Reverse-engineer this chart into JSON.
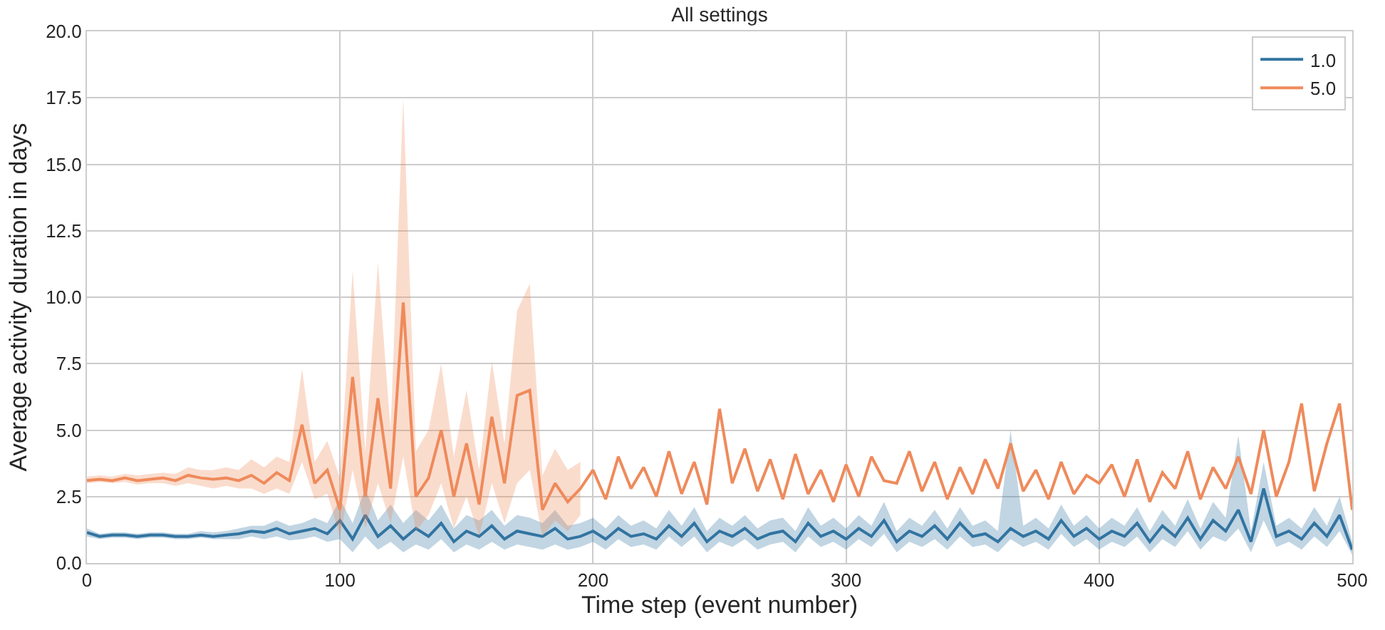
{
  "chart_data": {
    "type": "line",
    "title": "All settings",
    "xlabel": "Time step (event number)",
    "ylabel": "Average activity duration in days",
    "x": [
      0,
      5,
      10,
      15,
      20,
      25,
      30,
      35,
      40,
      45,
      50,
      55,
      60,
      65,
      70,
      75,
      80,
      85,
      90,
      95,
      100,
      105,
      110,
      115,
      120,
      125,
      130,
      135,
      140,
      145,
      150,
      155,
      160,
      165,
      170,
      175,
      180,
      185,
      190,
      195,
      200,
      205,
      210,
      215,
      220,
      225,
      230,
      235,
      240,
      245,
      250,
      255,
      260,
      265,
      270,
      275,
      280,
      285,
      290,
      295,
      300,
      305,
      310,
      315,
      320,
      325,
      330,
      335,
      340,
      345,
      350,
      355,
      360,
      365,
      370,
      375,
      380,
      385,
      390,
      395,
      400,
      405,
      410,
      415,
      420,
      425,
      430,
      435,
      440,
      445,
      450,
      455,
      460,
      465,
      470,
      475,
      480,
      485,
      490,
      495,
      500
    ],
    "series": [
      {
        "name": "1.0",
        "color": "#3274a1",
        "values": [
          1.15,
          1.0,
          1.05,
          1.05,
          1.0,
          1.05,
          1.05,
          1.0,
          1.0,
          1.05,
          1.0,
          1.05,
          1.1,
          1.2,
          1.15,
          1.3,
          1.1,
          1.2,
          1.3,
          1.1,
          1.6,
          0.9,
          1.8,
          1.0,
          1.4,
          0.9,
          1.3,
          1.0,
          1.5,
          0.8,
          1.2,
          1.0,
          1.4,
          0.9,
          1.2,
          1.1,
          1.0,
          1.3,
          0.9,
          1.0,
          1.2,
          0.9,
          1.3,
          1.0,
          1.1,
          0.9,
          1.4,
          1.0,
          1.5,
          0.8,
          1.2,
          1.0,
          1.3,
          0.9,
          1.1,
          1.2,
          0.8,
          1.5,
          1.0,
          1.2,
          0.9,
          1.3,
          1.0,
          1.6,
          0.8,
          1.2,
          1.0,
          1.4,
          0.9,
          1.5,
          1.0,
          1.1,
          0.8,
          1.3,
          1.0,
          1.2,
          0.9,
          1.6,
          1.0,
          1.3,
          0.9,
          1.2,
          1.0,
          1.5,
          0.8,
          1.4,
          1.0,
          1.7,
          0.9,
          1.6,
          1.2,
          2.0,
          0.8,
          2.8,
          1.0,
          1.2,
          0.9,
          1.5,
          1.0,
          1.8,
          0.5
        ],
        "lower": [
          1.0,
          0.9,
          0.95,
          0.95,
          0.9,
          0.95,
          0.95,
          0.9,
          0.9,
          0.95,
          0.9,
          0.9,
          0.9,
          1.0,
          0.9,
          1.0,
          0.85,
          0.9,
          1.0,
          0.8,
          0.9,
          0.4,
          1.0,
          0.5,
          0.8,
          0.4,
          0.7,
          0.5,
          0.9,
          0.4,
          0.7,
          0.5,
          0.8,
          0.5,
          0.7,
          0.6,
          0.5,
          0.7,
          0.5,
          0.6,
          0.8,
          0.5,
          0.9,
          0.6,
          0.7,
          0.5,
          1.0,
          0.6,
          1.0,
          0.4,
          0.8,
          0.6,
          0.9,
          0.5,
          0.7,
          0.8,
          0.4,
          1.0,
          0.6,
          0.8,
          0.5,
          0.9,
          0.6,
          1.1,
          0.4,
          0.8,
          0.6,
          0.9,
          0.5,
          1.0,
          0.6,
          0.7,
          0.4,
          0.9,
          0.6,
          0.8,
          0.5,
          1.1,
          0.6,
          0.9,
          0.5,
          0.8,
          0.6,
          1.0,
          0.4,
          0.9,
          0.6,
          1.2,
          0.5,
          1.0,
          0.8,
          1.3,
          0.4,
          1.6,
          0.6,
          0.8,
          0.5,
          1.0,
          0.6,
          1.2,
          0.3
        ],
        "upper": [
          1.3,
          1.1,
          1.15,
          1.15,
          1.1,
          1.15,
          1.15,
          1.1,
          1.1,
          1.2,
          1.15,
          1.2,
          1.3,
          1.4,
          1.4,
          1.6,
          1.4,
          1.5,
          1.7,
          1.5,
          2.4,
          1.5,
          2.8,
          1.6,
          2.2,
          1.5,
          2.0,
          1.6,
          2.2,
          1.3,
          1.8,
          1.6,
          2.0,
          1.4,
          1.8,
          1.7,
          1.5,
          2.0,
          1.4,
          1.5,
          1.7,
          1.3,
          1.8,
          1.4,
          1.6,
          1.3,
          2.0,
          1.4,
          2.1,
          1.2,
          1.7,
          1.4,
          1.8,
          1.3,
          1.6,
          1.7,
          1.2,
          2.1,
          1.4,
          1.7,
          1.3,
          1.8,
          1.4,
          2.3,
          1.2,
          1.7,
          1.4,
          2.0,
          1.3,
          2.1,
          1.4,
          1.6,
          1.2,
          5.0,
          1.4,
          1.7,
          1.3,
          2.2,
          1.4,
          1.8,
          1.3,
          1.7,
          1.4,
          2.1,
          1.2,
          2.0,
          1.4,
          2.4,
          1.3,
          2.3,
          1.7,
          4.8,
          1.2,
          3.8,
          1.4,
          1.7,
          1.3,
          2.1,
          1.4,
          2.5,
          0.8
        ]
      },
      {
        "name": "5.0",
        "color": "#ef8a5b",
        "values": [
          3.1,
          3.15,
          3.1,
          3.2,
          3.1,
          3.15,
          3.2,
          3.1,
          3.3,
          3.2,
          3.15,
          3.2,
          3.1,
          3.3,
          3.0,
          3.4,
          3.1,
          5.2,
          3.0,
          3.5,
          2.0,
          7.0,
          2.5,
          6.2,
          2.8,
          9.8,
          2.5,
          3.2,
          5.0,
          2.5,
          4.5,
          2.2,
          5.5,
          3.0,
          6.3,
          6.5,
          2.0,
          3.0,
          2.3,
          2.8,
          3.5,
          2.4,
          4.0,
          2.8,
          3.6,
          2.5,
          4.2,
          2.6,
          3.8,
          2.2,
          5.8,
          3.0,
          4.3,
          2.7,
          3.9,
          2.4,
          4.1,
          2.6,
          3.5,
          2.3,
          3.7,
          2.5,
          4.0,
          3.1,
          3.0,
          4.2,
          2.7,
          3.8,
          2.4,
          3.6,
          2.6,
          3.9,
          2.8,
          4.5,
          2.7,
          3.5,
          2.4,
          3.8,
          2.6,
          3.3,
          3.0,
          3.7,
          2.5,
          3.9,
          2.3,
          3.4,
          2.8,
          4.2,
          2.4,
          3.6,
          2.8,
          4.0,
          2.6,
          5.0,
          2.5,
          3.8,
          6.0,
          2.7,
          4.5,
          6.0,
          2.0
        ],
        "lower": [
          3.0,
          3.05,
          3.0,
          3.05,
          2.95,
          3.0,
          3.0,
          2.9,
          3.0,
          2.9,
          2.8,
          2.9,
          2.8,
          2.8,
          2.6,
          2.8,
          2.6,
          3.8,
          2.4,
          2.6,
          1.0,
          3.5,
          1.3,
          3.0,
          1.5,
          4.0,
          1.2,
          1.8,
          3.0,
          1.3,
          2.5,
          1.0,
          3.0,
          1.5,
          3.0,
          3.5,
          1.0,
          1.6,
          1.2,
          1.8,
          null,
          null,
          null,
          null,
          null,
          null,
          null,
          null,
          null,
          null,
          null,
          null,
          null,
          null,
          null,
          null,
          null,
          null,
          null,
          null,
          null,
          null,
          null,
          null,
          null,
          null,
          null,
          null,
          null,
          null,
          null,
          null,
          null,
          null,
          null,
          null,
          null,
          null,
          null,
          null,
          null,
          null,
          null,
          null,
          null,
          null,
          null,
          null,
          null,
          null,
          null,
          null,
          null,
          null,
          null,
          null,
          null,
          null,
          null,
          null,
          null
        ],
        "upper": [
          3.25,
          3.3,
          3.25,
          3.35,
          3.3,
          3.35,
          3.4,
          3.35,
          3.6,
          3.5,
          3.5,
          3.6,
          3.5,
          3.9,
          3.6,
          4.0,
          3.8,
          7.3,
          3.8,
          4.6,
          3.2,
          11.0,
          4.2,
          11.3,
          5.0,
          17.5,
          4.2,
          5.0,
          7.5,
          4.0,
          6.5,
          3.5,
          7.6,
          4.5,
          9.5,
          10.5,
          3.3,
          4.3,
          3.5,
          3.8,
          null,
          null,
          null,
          null,
          null,
          null,
          null,
          null,
          null,
          null,
          null,
          null,
          null,
          null,
          null,
          null,
          null,
          null,
          null,
          null,
          null,
          null,
          null,
          null,
          null,
          null,
          null,
          null,
          null,
          null,
          null,
          null,
          null,
          null,
          null,
          null,
          null,
          null,
          null,
          null,
          null,
          null,
          null,
          null,
          null,
          null,
          null,
          null,
          null,
          null,
          null,
          null,
          null,
          null,
          null,
          null,
          null,
          null,
          null,
          null,
          null
        ]
      }
    ],
    "xlim": [
      0,
      500
    ],
    "xticks": [
      0,
      100,
      200,
      300,
      400,
      500
    ],
    "ylim": [
      0,
      20
    ],
    "yticks": [
      {
        "value": 0,
        "label": "0.0"
      },
      {
        "value": 2.5,
        "label": "2.5"
      },
      {
        "value": 5,
        "label": "5.0"
      },
      {
        "value": 7.5,
        "label": "7.5"
      },
      {
        "value": 10,
        "label": "10.0"
      },
      {
        "value": 12.5,
        "label": "12.5"
      },
      {
        "value": 15,
        "label": "15.0"
      },
      {
        "value": 17.5,
        "label": "17.5"
      },
      {
        "value": 20,
        "label": "20.0"
      }
    ],
    "grid": true,
    "legend": "top right"
  }
}
